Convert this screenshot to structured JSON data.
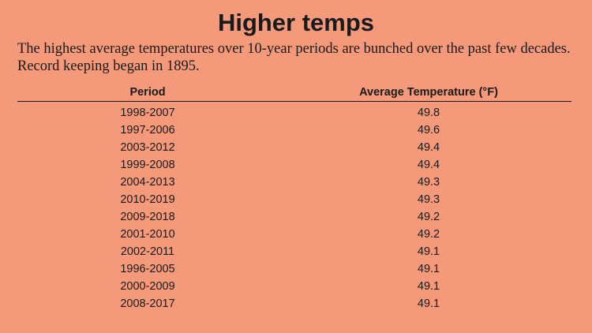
{
  "title": "Higher temps",
  "subtitle": "The highest average temperatures over 10-year periods are bunched over the past few decades. Record keeping began in 1895.",
  "colors": {
    "background": "#F4997A",
    "text": "#1a1a1a"
  },
  "chart_data": {
    "type": "table",
    "title": "Higher temps",
    "columns": [
      "Period",
      "Average Temperature (°F)"
    ],
    "rows": [
      [
        "1998-2007",
        "49.8"
      ],
      [
        "1997-2006",
        "49.6"
      ],
      [
        "2003-2012",
        "49.4"
      ],
      [
        "1999-2008",
        "49.4"
      ],
      [
        "2004-2013",
        "49.3"
      ],
      [
        "2010-2019",
        "49.3"
      ],
      [
        "2009-2018",
        "49.2"
      ],
      [
        "2001-2010",
        "49.2"
      ],
      [
        "2002-2011",
        "49.1"
      ],
      [
        "1996-2005",
        "49.1"
      ],
      [
        "2000-2009",
        "49.1"
      ],
      [
        "2008-2017",
        "49.1"
      ]
    ]
  }
}
